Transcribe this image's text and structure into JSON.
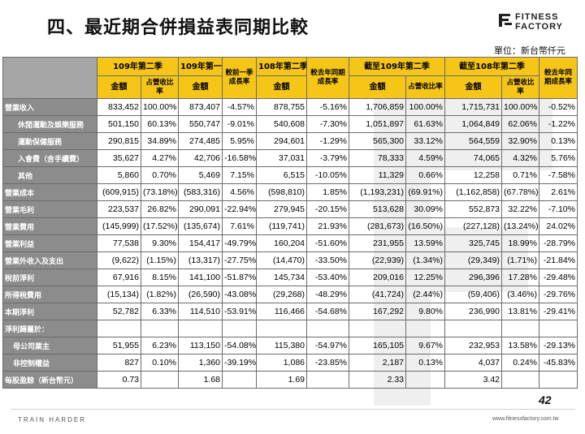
{
  "title": "四、最近期合併損益表同期比較",
  "logo": {
    "line1": "FITNESS",
    "line2": "FACTORY"
  },
  "unit": "單位：新台幣仟元",
  "columns": {
    "g1": "109年第二季",
    "g2": "109年第一季",
    "g3": "較前一季成長率",
    "g4": "108年第二季",
    "g5": "較去年同期成長率",
    "g6": "截至109年第二季",
    "g7": "截至108年第二季",
    "g8": "較去年同期成長率",
    "amount": "金額",
    "pct": "占營收比率"
  },
  "rows": [
    {
      "label": "營業收入",
      "c": [
        "833,452",
        "100.00%",
        "873,407",
        "-4.57%",
        "878,755",
        "-5.16%",
        "1,706,859",
        "100.00%",
        "1,715,731",
        "100.00%",
        "-0.52%"
      ]
    },
    {
      "label": "休閒運動及娛樂服務",
      "c": [
        "501,150",
        "60.13%",
        "550,747",
        "-9.01%",
        "540,608",
        "-7.30%",
        "1,051,897",
        "61.63%",
        "1,064,849",
        "62.06%",
        "-1.22%"
      ]
    },
    {
      "label": "運動保健服務",
      "c": [
        "290,815",
        "34.89%",
        "274,485",
        "5.95%",
        "294,601",
        "-1.29%",
        "565,300",
        "33.12%",
        "564,559",
        "32.90%",
        "0.13%"
      ]
    },
    {
      "label": "入會費（含手續費）",
      "c": [
        "35,627",
        "4.27%",
        "42,706",
        "-16.58%",
        "37,031",
        "-3.79%",
        "78,333",
        "4.59%",
        "74,065",
        "4.32%",
        "5.76%"
      ]
    },
    {
      "label": "其他",
      "c": [
        "5,860",
        "0.70%",
        "5,469",
        "7.15%",
        "6,515",
        "-10.05%",
        "11,329",
        "0.66%",
        "12,258",
        "0.71%",
        "-7.58%"
      ]
    },
    {
      "label": "營業成本",
      "c": [
        "(609,915)",
        "(73.18%)",
        "(583,316)",
        "4.56%",
        "(598,810)",
        "1.85%",
        "(1,193,231)",
        "(69.91%)",
        "(1,162,858)",
        "(67.78%)",
        "2.61%"
      ]
    },
    {
      "label": "營業毛利",
      "c": [
        "223,537",
        "26.82%",
        "290,091",
        "-22.94%",
        "279,945",
        "-20.15%",
        "513,628",
        "30.09%",
        "552,873",
        "32.22%",
        "-7.10%"
      ]
    },
    {
      "label": "營業費用",
      "c": [
        "(145,999)",
        "(17.52%)",
        "(135,674)",
        "7.61%",
        "(119,741)",
        "21.93%",
        "(281,673)",
        "(16.50%)",
        "(227,128)",
        "(13.24%)",
        "24.02%"
      ]
    },
    {
      "label": "營業利益",
      "c": [
        "77,538",
        "9.30%",
        "154,417",
        "-49.79%",
        "160,204",
        "-51.60%",
        "231,955",
        "13.59%",
        "325,745",
        "18.99%",
        "-28.79%"
      ]
    },
    {
      "label": "營業外收入及支出",
      "c": [
        "(9,622)",
        "(1.15%)",
        "(13,317)",
        "-27.75%",
        "(14,470)",
        "-33.50%",
        "(22,939)",
        "(1.34%)",
        "(29,349)",
        "(1.71%)",
        "-21.84%"
      ]
    },
    {
      "label": "稅前淨利",
      "c": [
        "67,916",
        "8.15%",
        "141,100",
        "-51.87%",
        "145,734",
        "-53.40%",
        "209,016",
        "12.25%",
        "296,396",
        "17.28%",
        "-29.48%"
      ]
    },
    {
      "label": "所得稅費用",
      "c": [
        "(15,134)",
        "(1.82%)",
        "(26,590)",
        "-43.08%",
        "(29,268)",
        "-48.29%",
        "(41,724)",
        "(2.44%)",
        "(59,406)",
        "(3.46%)",
        "-29.76%"
      ]
    },
    {
      "label": "本期淨利",
      "c": [
        "52,782",
        "6.33%",
        "114,510",
        "-53.91%",
        "116,466",
        "-54.68%",
        "167,292",
        "9.80%",
        "236,990",
        "13.81%",
        "-29.41%"
      ]
    },
    {
      "label": "淨利歸屬於：",
      "c": [
        "",
        "",
        "",
        "",
        "",
        "",
        "",
        "",
        "",
        "",
        ""
      ]
    },
    {
      "label": "母公司業主",
      "c": [
        "51,955",
        "6.23%",
        "113,150",
        "-54.08%",
        "115,380",
        "-54.97%",
        "165,105",
        "9.67%",
        "232,953",
        "13.58%",
        "-29.13%"
      ]
    },
    {
      "label": "非控制權益",
      "c": [
        "827",
        "0.10%",
        "1,360",
        "-39.19%",
        "1,086",
        "-23.85%",
        "2,187",
        "0.13%",
        "4,037",
        "0.24%",
        "-45.83%"
      ]
    },
    {
      "label": "每股盈餘（新台幣元）",
      "c": [
        "0.73",
        "",
        "1.68",
        "",
        "1.69",
        "",
        "2.33",
        "",
        "3.42",
        "",
        ""
      ]
    }
  ],
  "page_number": "42",
  "footer": {
    "left": "TRAIN HARDER",
    "right": "www.fitnessfactory.com.tw"
  }
}
